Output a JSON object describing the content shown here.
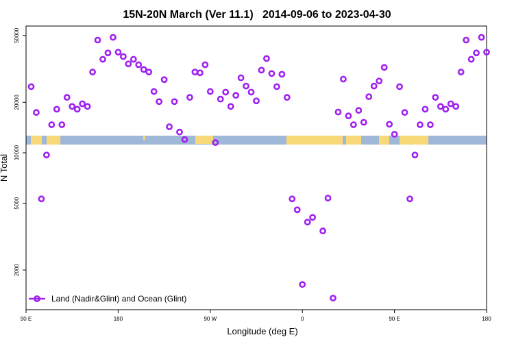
{
  "chart_data": {
    "type": "scatter",
    "title": "15N-20N March (Ver 11.1)   2014-09-06 to 2023-04-30",
    "xlabel": "Longitude (deg E)",
    "ylabel": "N Total",
    "xlim": [
      90,
      540
    ],
    "ylim": [
      1160,
      57000
    ],
    "log_y": true,
    "xticks": [
      {
        "value": 90,
        "label": "90 E"
      },
      {
        "value": 180,
        "label": "180"
      },
      {
        "value": 270,
        "label": "90 W"
      },
      {
        "value": 360,
        "label": "0"
      },
      {
        "value": 450,
        "label": "90 E"
      },
      {
        "value": 540,
        "label": "180"
      }
    ],
    "yticks": [
      2000,
      5000,
      10000,
      20000,
      50000
    ],
    "legend": "lower left",
    "x": [
      95,
      100,
      105,
      110,
      115,
      120,
      125,
      130,
      135,
      140,
      145,
      150,
      155,
      160,
      165,
      170,
      175,
      180,
      185,
      190,
      195,
      200,
      205,
      210,
      215,
      220,
      225,
      230,
      235,
      240,
      245,
      250,
      255,
      260,
      265,
      270,
      275,
      280,
      285,
      290,
      295,
      300,
      305,
      310,
      315,
      320,
      325,
      330,
      335,
      340,
      345,
      350,
      355,
      360,
      365,
      370,
      380,
      385,
      390,
      395,
      400,
      405,
      410,
      415,
      420,
      425,
      430,
      435,
      440,
      445,
      450,
      455,
      460,
      465,
      470,
      475,
      480,
      485,
      490,
      495,
      500,
      505,
      510,
      515,
      520,
      525,
      530,
      535,
      540
    ],
    "series": [
      {
        "name": "Land (Nadir&Glint) and Ocean (Glint)",
        "color": "#a020f0",
        "values": [
          24800,
          17400,
          5310,
          9700,
          14700,
          18200,
          14700,
          21400,
          18900,
          18200,
          19600,
          18900,
          30300,
          47000,
          36100,
          39400,
          48800,
          39800,
          37500,
          33900,
          36100,
          33500,
          31400,
          30300,
          23200,
          20200,
          27300,
          14300,
          20200,
          13300,
          12000,
          21400,
          30300,
          30000,
          33500,
          23200,
          11500,
          20900,
          23000,
          18900,
          22000,
          28000,
          25000,
          23000,
          20400,
          31100,
          36500,
          29700,
          24800,
          29400,
          21400,
          5310,
          4570,
          1640,
          3860,
          4120,
          3420,
          5370,
          1360,
          17500,
          27500,
          16600,
          14700,
          17900,
          15200,
          21600,
          25000,
          26800,
          32300,
          14800,
          12900,
          24800,
          17400,
          5310,
          9700,
          14700,
          18200,
          14700,
          21400,
          18900,
          18200,
          19600,
          18900,
          30300,
          47000,
          36100,
          39400,
          48800,
          39800
        ]
      }
    ]
  }
}
